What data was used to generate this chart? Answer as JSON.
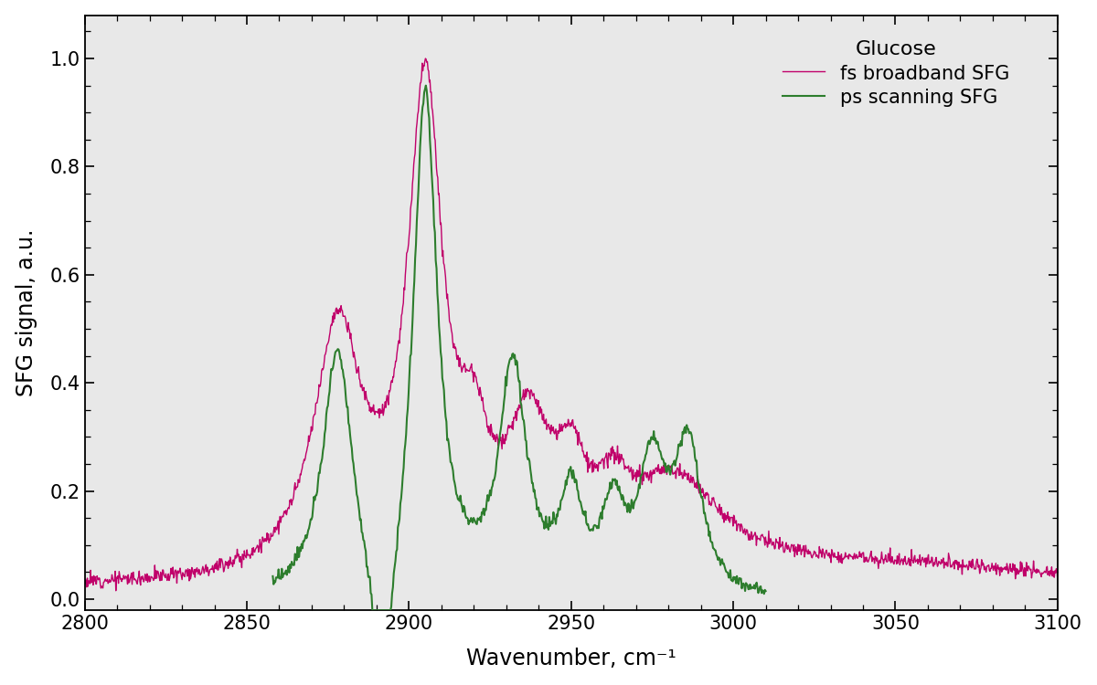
{
  "title": "Glucose",
  "xlabel": "Wavenumber, cm⁻¹",
  "ylabel": "SFG signal, a.u.",
  "xlim": [
    2800,
    3100
  ],
  "ylim": [
    -0.02,
    1.08
  ],
  "yticks": [
    0.0,
    0.2,
    0.4,
    0.6,
    0.8,
    1.0
  ],
  "xticks": [
    2800,
    2850,
    2900,
    2950,
    3000,
    3050,
    3100
  ],
  "bg_color": "#e8e8e8",
  "fs_color": "#c0006a",
  "ps_color": "#2d7d2d",
  "legend_title": "Glucose",
  "legend_fs": "fs broadband SFG",
  "legend_ps": "ps scanning SFG",
  "fs_linewidth": 1.0,
  "ps_linewidth": 1.5
}
